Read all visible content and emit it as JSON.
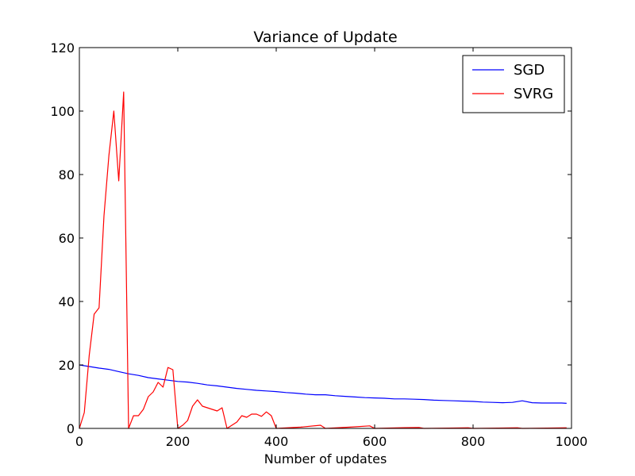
{
  "chart_data": {
    "type": "line",
    "title": "Variance of Update",
    "xlabel": "Number of updates",
    "ylabel": "",
    "xlim": [
      0,
      1000
    ],
    "ylim": [
      0,
      120
    ],
    "xticks": [
      0,
      200,
      400,
      600,
      800,
      1000
    ],
    "yticks": [
      0,
      20,
      40,
      60,
      80,
      100,
      120
    ],
    "xtick_labels": [
      "0",
      "200",
      "400",
      "600",
      "800",
      "1000"
    ],
    "ytick_labels": [
      "0",
      "20",
      "40",
      "60",
      "80",
      "100",
      "120"
    ],
    "grid": false,
    "legend_position": "top-right",
    "series": [
      {
        "name": "SGD",
        "color": "#0000ff",
        "x": [
          0,
          20,
          40,
          60,
          80,
          100,
          120,
          140,
          160,
          180,
          200,
          220,
          240,
          260,
          280,
          300,
          320,
          340,
          360,
          380,
          400,
          420,
          440,
          460,
          480,
          500,
          520,
          540,
          560,
          580,
          600,
          620,
          640,
          660,
          680,
          700,
          720,
          740,
          760,
          780,
          800,
          820,
          840,
          860,
          880,
          900,
          920,
          940,
          960,
          980,
          990
        ],
        "y": [
          20,
          19.5,
          19,
          18.6,
          17.9,
          17.2,
          16.7,
          16,
          15.6,
          15.2,
          14.8,
          14.6,
          14.2,
          13.7,
          13.4,
          13,
          12.6,
          12.3,
          12,
          11.8,
          11.6,
          11.3,
          11.1,
          10.8,
          10.6,
          10.6,
          10.3,
          10.1,
          9.9,
          9.7,
          9.6,
          9.5,
          9.3,
          9.3,
          9.2,
          9.1,
          8.9,
          8.8,
          8.7,
          8.6,
          8.5,
          8.3,
          8.2,
          8.1,
          8.2,
          8.7,
          8.1,
          8.0,
          8.0,
          8.0,
          7.9
        ]
      },
      {
        "name": "SVRG",
        "color": "#ff0000",
        "x": [
          0,
          10,
          20,
          30,
          40,
          50,
          60,
          70,
          80,
          90,
          100,
          110,
          120,
          130,
          140,
          150,
          160,
          170,
          180,
          190,
          200,
          210,
          220,
          230,
          240,
          250,
          260,
          270,
          280,
          290,
          300,
          310,
          320,
          330,
          340,
          350,
          360,
          370,
          380,
          390,
          400,
          450,
          490,
          500,
          550,
          590,
          600,
          650,
          690,
          700,
          750,
          790,
          800,
          850,
          890,
          900,
          950,
          990
        ],
        "y": [
          0,
          5,
          23,
          36,
          38,
          67,
          86,
          100,
          78,
          106,
          0,
          4,
          4,
          6,
          10,
          11.5,
          14.5,
          13,
          19.2,
          18.5,
          0,
          1,
          2.5,
          7,
          9,
          7,
          6.5,
          6,
          5.5,
          6.5,
          0,
          1,
          2,
          4,
          3.5,
          4.5,
          4.5,
          3.8,
          5.2,
          4,
          0,
          0.4,
          1.0,
          0,
          0.4,
          0.8,
          0,
          0.2,
          0.3,
          0,
          0.1,
          0.2,
          0,
          0.1,
          0.2,
          0,
          0.1,
          0.2
        ]
      }
    ]
  }
}
